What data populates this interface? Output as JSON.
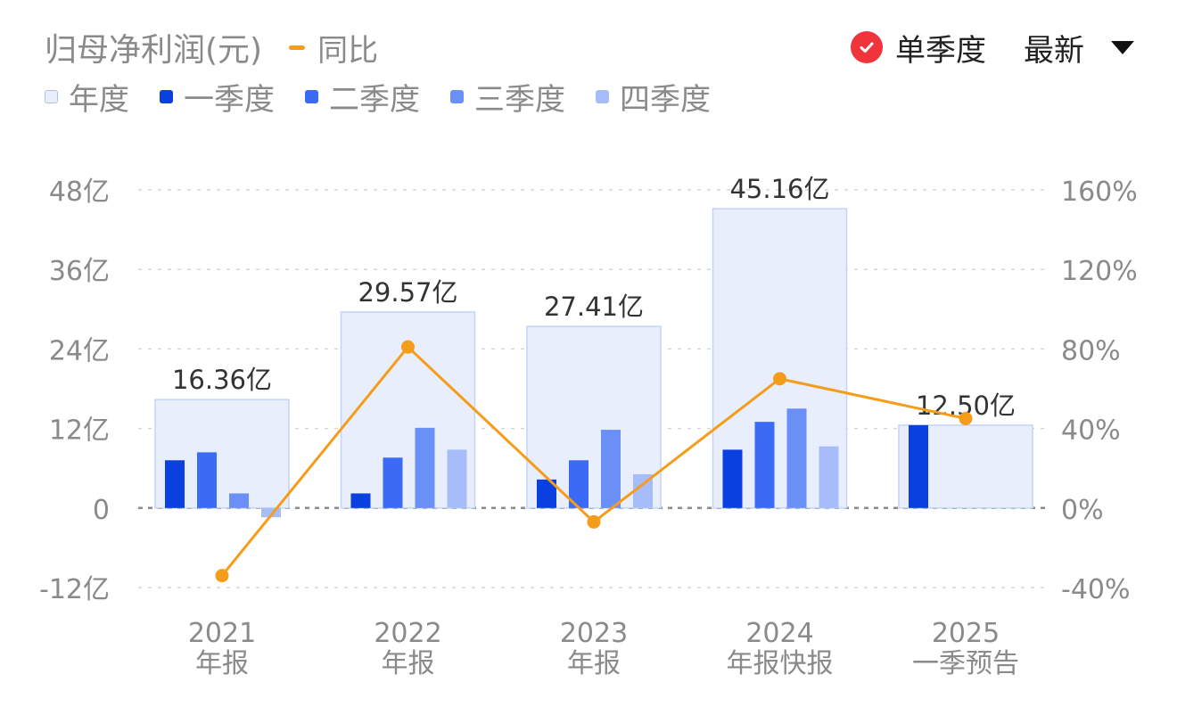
{
  "header": {
    "title": "归母净利润(元)",
    "yoy_label": "同比",
    "single_quarter_label": "单季度",
    "latest_label": "最新"
  },
  "legend": {
    "items": [
      {
        "label": "年度",
        "color": "#e8eefc"
      },
      {
        "label": "一季度",
        "color": "#0a3fe0"
      },
      {
        "label": "二季度",
        "color": "#3b6af5"
      },
      {
        "label": "三季度",
        "color": "#6a8ff6"
      },
      {
        "label": "四季度",
        "color": "#a7bdf9"
      }
    ]
  },
  "chart_data": {
    "type": "bar",
    "categories": [
      [
        "2021",
        "年报"
      ],
      [
        "2022",
        "年报"
      ],
      [
        "2023",
        "年报"
      ],
      [
        "2024",
        "年报快报"
      ],
      [
        "2025",
        "一季预告"
      ]
    ],
    "y_left_ticks": [
      "48亿",
      "36亿",
      "24亿",
      "12亿",
      "0",
      "-12亿"
    ],
    "y_right_ticks": [
      "160%",
      "120%",
      "80%",
      "40%",
      "0%",
      "-40%"
    ],
    "ylim_left": [
      -12,
      48
    ],
    "ylim_right": [
      -40,
      160
    ],
    "annual": [
      16.36,
      29.57,
      27.41,
      45.16,
      12.5
    ],
    "annual_labels": [
      "16.36亿",
      "29.57亿",
      "27.41亿",
      "45.16亿",
      "12.50亿"
    ],
    "series": [
      {
        "name": "一季度",
        "values": [
          7.2,
          2.2,
          4.3,
          8.8,
          12.5
        ]
      },
      {
        "name": "二季度",
        "values": [
          8.4,
          7.6,
          7.2,
          13.0,
          null
        ]
      },
      {
        "name": "三季度",
        "values": [
          2.2,
          12.1,
          11.8,
          15.0,
          null
        ]
      },
      {
        "name": "四季度",
        "values": [
          -1.4,
          8.8,
          5.1,
          9.3,
          null
        ]
      }
    ],
    "yoy": {
      "name": "同比",
      "values": [
        -34,
        81,
        -7,
        65,
        45
      ]
    },
    "colors": {
      "annual_fill": "#e8eefc",
      "annual_stroke": "#c4d3f6",
      "q1": "#0a3fe0",
      "q2": "#3b6af5",
      "q3": "#6a8ff6",
      "q4": "#a7bdf9",
      "yoy": "#f59c1a",
      "grid": "#d6d6d6",
      "zero": "#8a8a8a",
      "axis_text": "#8a8a8a",
      "label_text": "#333333"
    }
  }
}
